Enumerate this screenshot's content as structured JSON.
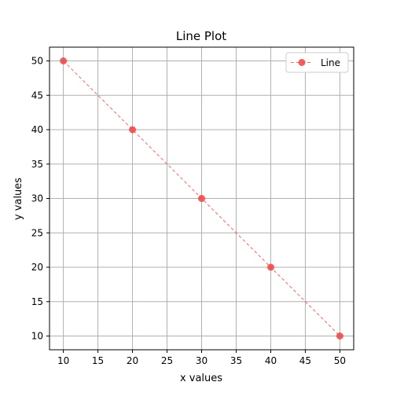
{
  "chart_data": {
    "type": "line",
    "title": "Line Plot",
    "xlabel": "x values",
    "ylabel": "y values",
    "x": [
      10,
      20,
      30,
      40,
      50
    ],
    "series": [
      {
        "name": "Line",
        "values": [
          50,
          40,
          30,
          20,
          10
        ],
        "color": "#ee4444",
        "line_style": "dashed",
        "marker": "circle"
      }
    ],
    "xlim": [
      8,
      52
    ],
    "ylim": [
      8,
      52
    ],
    "xticks": [
      10,
      15,
      20,
      25,
      30,
      35,
      40,
      45,
      50
    ],
    "yticks": [
      10,
      15,
      20,
      25,
      30,
      35,
      40,
      45,
      50
    ],
    "grid": true,
    "legend_position": "top-right"
  }
}
